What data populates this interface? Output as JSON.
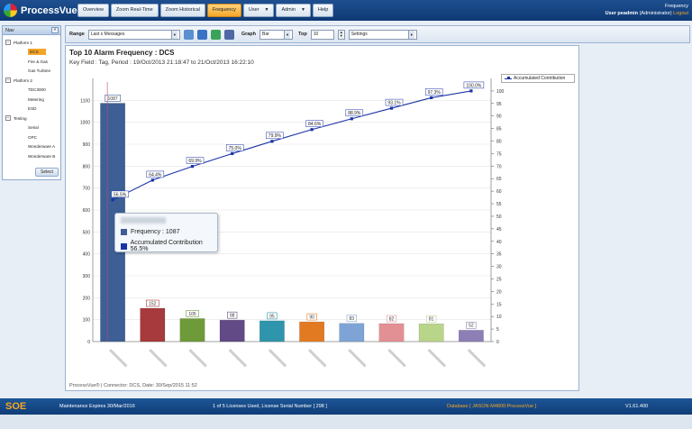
{
  "app": {
    "name": "ProcessVue",
    "menu": [
      {
        "label": "Overview",
        "dropdown": false,
        "active": false
      },
      {
        "label": "Zoom Real-Time",
        "dropdown": false,
        "active": false
      },
      {
        "label": "Zoom Historical",
        "dropdown": false,
        "active": false
      },
      {
        "label": "Frequency",
        "dropdown": false,
        "active": true
      },
      {
        "label": "User",
        "dropdown": true,
        "active": false
      },
      {
        "label": "Admin",
        "dropdown": true,
        "active": false
      },
      {
        "label": "Help",
        "dropdown": false,
        "active": false
      }
    ],
    "page_name": "Frequency",
    "user_label": "User peadmin",
    "user_role": "(Administrator)",
    "logout_label": "Logout"
  },
  "nav": {
    "title": "Nav",
    "collapse_glyph": "«",
    "select_label": "Select",
    "tree": [
      {
        "kind": "group",
        "label": "Platform 1",
        "toggle": "−"
      },
      {
        "kind": "leaf",
        "label": "DCS",
        "selected": true
      },
      {
        "kind": "leaf",
        "label": "Fire & Gas"
      },
      {
        "kind": "leaf",
        "label": "Gas Turbine"
      },
      {
        "kind": "group",
        "label": "Platform 2",
        "toggle": "−"
      },
      {
        "kind": "leaf",
        "label": "TDC3000"
      },
      {
        "kind": "leaf",
        "label": "Metering"
      },
      {
        "kind": "leaf",
        "label": "ESD"
      },
      {
        "kind": "group",
        "label": "Testing",
        "toggle": "−"
      },
      {
        "kind": "leaf",
        "label": "Serial"
      },
      {
        "kind": "leaf",
        "label": "OPC"
      },
      {
        "kind": "leaf",
        "label": "Wonderware A"
      },
      {
        "kind": "leaf",
        "label": "Wonderware B"
      }
    ]
  },
  "toolbar": {
    "range_label": "Range",
    "range_value": "Last x Messages",
    "graph_label": "Graph",
    "graph_value": "Bar",
    "top_label": "Top",
    "top_value": "10",
    "settings_value": "Settings"
  },
  "chart_panel": {
    "title": "Top 10 Alarm Frequency : DCS",
    "subtitle": "Key Field : Tag, Period : 19/Oct/2013 21:18:47 to 21/Oct/2013 16:22:10",
    "footer": "ProcessVue® | Connector: DCS,  Date: 30/Sep/2015 11:52"
  },
  "chart_data": {
    "type": "bar",
    "categories": [
      "",
      "",
      "",
      "",
      "",
      "",
      "",
      "",
      "",
      ""
    ],
    "values": [
      1087,
      152,
      105,
      98,
      95,
      90,
      83,
      82,
      81,
      52
    ],
    "bar_colors": [
      "#3d5f95",
      "#a63a3c",
      "#6e9a3a",
      "#614a86",
      "#2f95ad",
      "#e27a22",
      "#7ea4d6",
      "#e39094",
      "#b8d58a",
      "#8d7fb6"
    ],
    "series": [
      {
        "name": "Frequency",
        "type": "bar",
        "values": [
          1087,
          152,
          105,
          98,
          95,
          90,
          83,
          82,
          81,
          52
        ]
      },
      {
        "name": "Accumulated Contribution",
        "type": "line",
        "axis": "right",
        "color": "#1a33a8",
        "values": [
          56.5,
          64.4,
          69.9,
          75.0,
          79.9,
          84.6,
          88.9,
          93.1,
          97.3,
          100.0
        ],
        "labels": [
          "56.5%",
          "64.4%",
          "69.9%",
          "75.0%",
          "79.9%",
          "84.6%",
          "88.9%",
          "93.1%",
          "97.3%",
          "100.0%"
        ]
      }
    ],
    "y_left": {
      "ylim": [
        0,
        1200
      ],
      "ticks": [
        0,
        100,
        200,
        300,
        400,
        500,
        600,
        700,
        800,
        900,
        1000,
        1100
      ]
    },
    "y_right": {
      "ylim": [
        0,
        105
      ],
      "ticks": [
        0,
        5,
        10,
        15,
        20,
        25,
        30,
        35,
        40,
        45,
        50,
        55,
        60,
        65,
        70,
        75,
        80,
        85,
        90,
        95,
        100
      ]
    },
    "grid": true,
    "legend": "right"
  },
  "tooltip": {
    "frequency_text": "Frequency : 1087",
    "contribution_text": "Accumulated Contribution 56.5%",
    "freq_color": "#3d5f95",
    "contrib_color": "#1a33a8"
  },
  "status": {
    "soe": "SOE",
    "maintenance": "Maintenance Expires 30/Mar/2016",
    "license": "1 of 5 Licenses Used, License Serial Number [ 298 ]",
    "database": "Database [ JASON-M4800:ProcessVue ]",
    "version": "V1.61.400"
  }
}
